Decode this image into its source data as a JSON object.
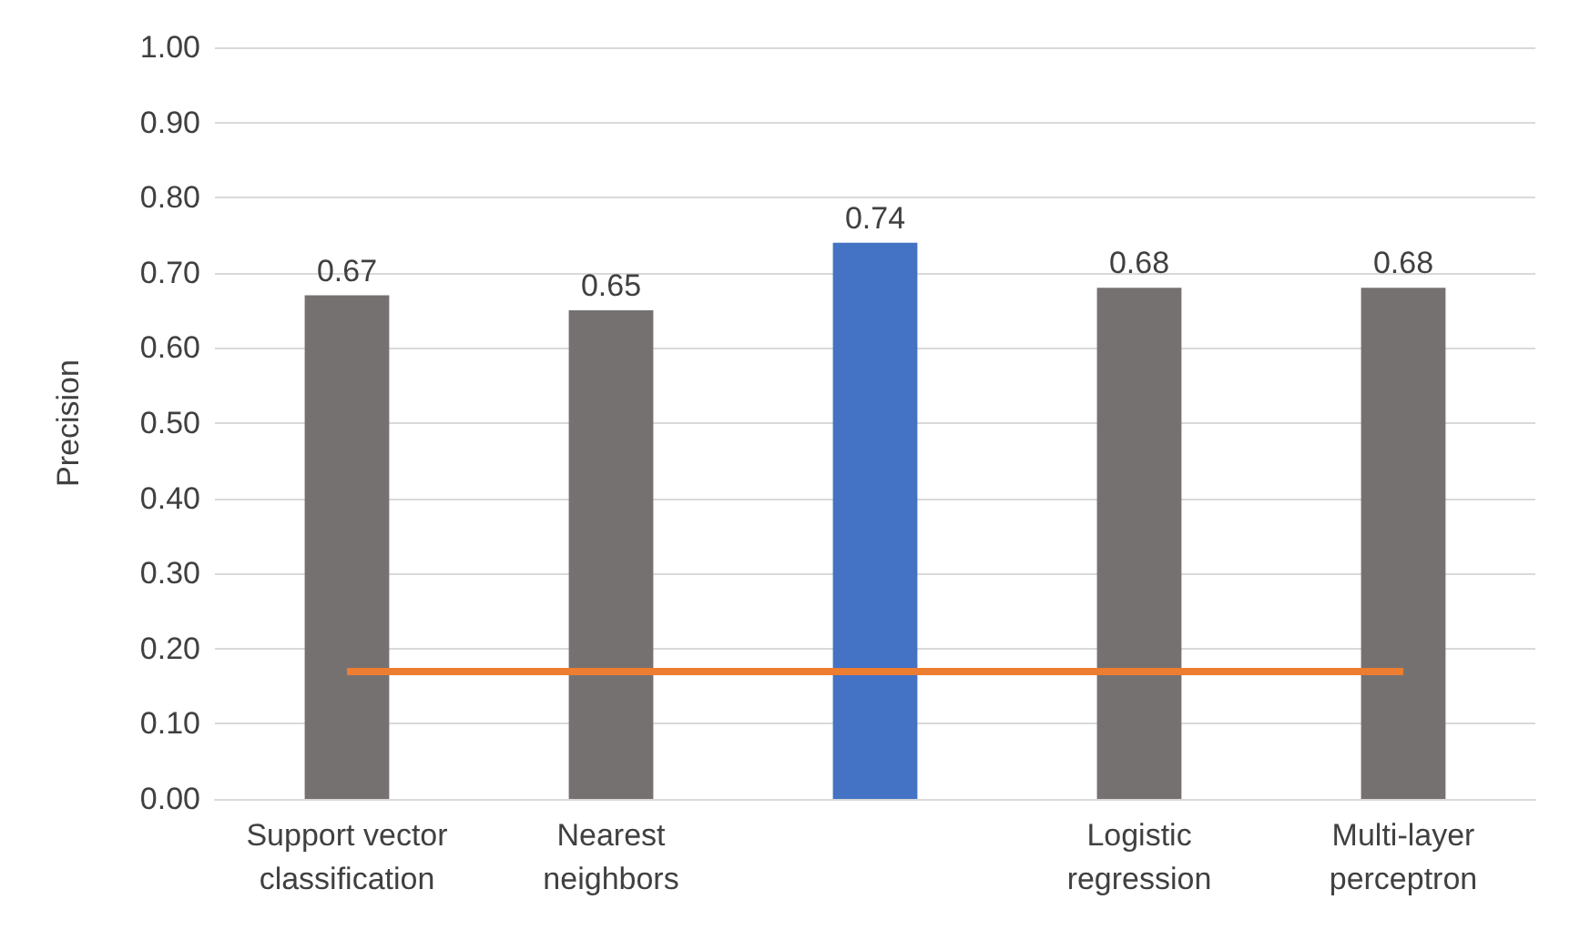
{
  "chart_data": {
    "type": "bar",
    "ylabel": "Precision",
    "categories": [
      "Support vector classification",
      "Nearest neighbors",
      null,
      "Logistic regression",
      "Multi-layer perceptron"
    ],
    "values": [
      0.67,
      0.65,
      0.74,
      0.68,
      0.68
    ],
    "colors": [
      "#767171",
      "#767171",
      "#4472c4",
      "#767171",
      "#767171"
    ],
    "ylim": [
      0,
      1
    ],
    "yticks": [
      {
        "value": 0,
        "label": "0.00"
      },
      {
        "value": 0.1,
        "label": "0.10"
      },
      {
        "value": 0.2,
        "label": "0.20"
      },
      {
        "value": 0.3,
        "label": "0.30"
      },
      {
        "value": 0.4,
        "label": "0.40"
      },
      {
        "value": 0.5,
        "label": "0.50"
      },
      {
        "value": 0.6,
        "label": "0.60"
      },
      {
        "value": 0.7,
        "label": "0.70"
      },
      {
        "value": 0.8,
        "label": "0.80"
      },
      {
        "value": 0.9,
        "label": "0.90"
      },
      {
        "value": 1,
        "label": "1.00"
      }
    ],
    "ref_lines": [
      {
        "axis": "y",
        "value": 0.17,
        "color": "#ed7d31"
      }
    ],
    "grid": "y",
    "data_labels": true
  }
}
